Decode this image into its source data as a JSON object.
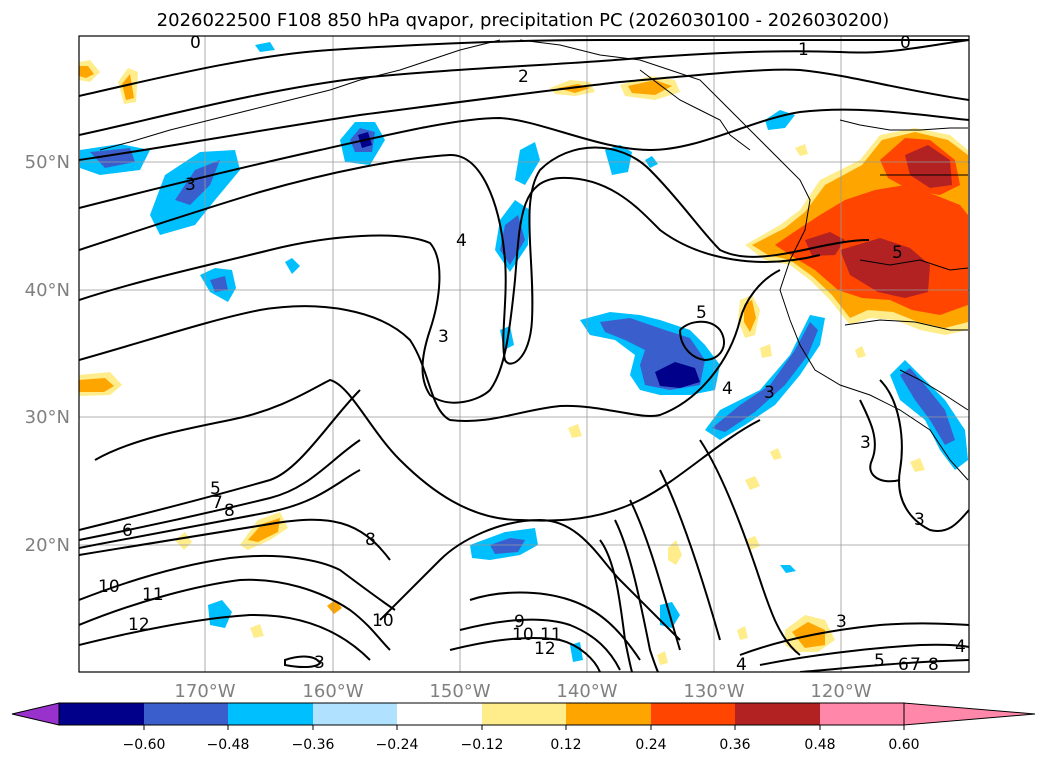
{
  "title": "2026022500 F108 850 hPa qvapor, precipitation PC (2026030100 - 2026030200)",
  "lat_labels": [
    "50°N",
    "40°N",
    "30°N",
    "20°N"
  ],
  "lon_labels": [
    "170°W",
    "160°W",
    "150°W",
    "140°W",
    "130°W",
    "120°W"
  ],
  "colorbar": {
    "ticks": [
      "−0.60",
      "−0.48",
      "−0.36",
      "−0.24",
      "−0.12",
      "0.12",
      "0.24",
      "0.36",
      "0.48",
      "0.60"
    ],
    "colors": [
      "#9932CC",
      "#00008B",
      "#3A5FCD",
      "#00BFFF",
      "#B0E2FF",
      "#FFFFFF",
      "#FFEC8B",
      "#FFA500",
      "#FF4500",
      "#B22222",
      "#FF88AA"
    ]
  },
  "contour_labels": [
    "0",
    "0",
    "1",
    "2",
    "3",
    "4",
    "3",
    "5",
    "4",
    "3",
    "5",
    "3",
    "3",
    "5",
    "7",
    "8",
    "6",
    "8",
    "10",
    "11",
    "12",
    "10",
    "9",
    "10",
    "11",
    "12",
    "4",
    "3",
    "3",
    "4",
    "5",
    "6",
    "7",
    "8"
  ]
}
